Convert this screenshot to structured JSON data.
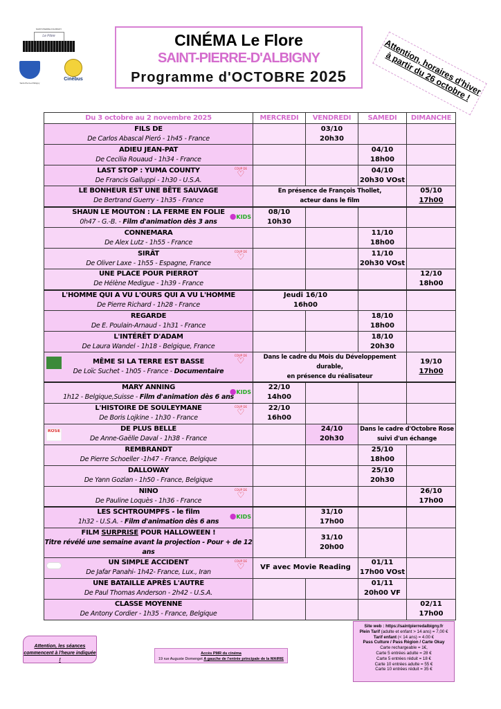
{
  "logos": {
    "flore_top": "SAINT-PIERRE-D'ALBIGNY",
    "flore_sub": "CINÉMA",
    "flore_name": "Le Flore",
    "coat_caption": "Saint-Pierre-d'Albigny",
    "cinebus": "Cinébus"
  },
  "header": {
    "line1": "CINÉMA Le Flore",
    "line2": "SAINT-PIERRE-D'ALBIGNY",
    "line3": "Programme d'OCTOBRE",
    "year": "2025"
  },
  "ribbon": {
    "line1": "Attention, horaires d'hiver",
    "line2": "à partir du 26 octobre !"
  },
  "colors": {
    "accent": "#d46ccd",
    "row_dark": "#f6cbf5",
    "row_light": "#fbe2fa"
  },
  "table": {
    "headers": [
      "Du 3 octobre au 2 novembre 2025",
      "MERCREDI",
      "VENDREDI",
      "SAMEDI",
      "DIMANCHE"
    ],
    "films": [
      {
        "title": "FILS DE",
        "sub": "De Carlos Abascal Pieró - 1h45 - France",
        "week": 1,
        "cells": [
          {
            "span": 1
          },
          {
            "span": 1,
            "l1": "03/10",
            "l2": "20h30"
          },
          {
            "span": 1
          },
          {
            "span": 1
          }
        ]
      },
      {
        "title": "ADIEU JEAN-PAT",
        "sub": "De Cecilia Rouaud - 1h34 - France",
        "week": 1,
        "cells": [
          {
            "span": 1
          },
          {
            "span": 1
          },
          {
            "span": 1,
            "l1": "04/10",
            "l2": "18h00"
          },
          {
            "span": 1
          }
        ]
      },
      {
        "title": "LAST STOP : YUMA COUNTY",
        "sub": "De Francis Galluppi - 1h30 - U.S.A.",
        "icon": "coup-de-coeur-heart",
        "week": 1,
        "cells": [
          {
            "span": 1
          },
          {
            "span": 1
          },
          {
            "span": 1,
            "l1": "04/10",
            "l2": "20h30 VOst"
          },
          {
            "span": 1
          }
        ]
      },
      {
        "title": "LE BONHEUR EST UNE BÊTE SAUVAGE",
        "sub": "De Bertrand Guerry - 1h35 - France",
        "week": 1,
        "cells": [
          {
            "span": 3,
            "note": true,
            "l1": "En présence de François Thollet,",
            "l2": "acteur dans le film"
          },
          {
            "span": 1,
            "l1": "05/10",
            "l2": "17h00",
            "u2": true
          }
        ]
      },
      {
        "title": "SHAUN LE MOUTON : LA FERME EN FOLIE",
        "sub": "0h47 - G.-B. - ",
        "sub_bold": "Film d'animation dès 3 ans",
        "icon": "kids",
        "week": 2,
        "cells": [
          {
            "span": 1,
            "l1": "08/10",
            "l2": "10h30"
          },
          {
            "span": 1
          },
          {
            "span": 1
          },
          {
            "span": 1
          }
        ]
      },
      {
        "title": "CONNEMARA",
        "sub": "De Alex Lutz - 1h55 - France",
        "week": 2,
        "cells": [
          {
            "span": 1
          },
          {
            "span": 1
          },
          {
            "span": 1,
            "l1": "11/10",
            "l2": "18h00"
          },
          {
            "span": 1
          }
        ]
      },
      {
        "title": "SIRÂT",
        "sub": "De Oliver Laxe - 1h55 - Espagne, France",
        "icon": "coup-de-coeur-heart",
        "week": 2,
        "cells": [
          {
            "span": 1
          },
          {
            "span": 1
          },
          {
            "span": 1,
            "l1": "11/10",
            "l2": "20h30 VOst"
          },
          {
            "span": 1
          }
        ]
      },
      {
        "title": "UNE PLACE POUR PIERROT",
        "sub": "De Hélène Medigue  - 1h39 - France",
        "week": 2,
        "cells": [
          {
            "span": 1
          },
          {
            "span": 1
          },
          {
            "span": 1
          },
          {
            "span": 1,
            "l1": "12/10",
            "l2": "18h00"
          }
        ]
      },
      {
        "title": "L'HOMME QUI A VU L'OURS QUI A VU L'HOMME",
        "sub": "De Pierre Richard - 1h28 - France",
        "week": 3,
        "cells": [
          {
            "span": 2,
            "l1": "Jeudi 16/10",
            "l2": "16h00"
          },
          {
            "span": 1
          },
          {
            "span": 1
          }
        ]
      },
      {
        "title": "REGARDE",
        "sub": "De E. Poulain-Arnaud - 1h31 - France",
        "week": 3,
        "cells": [
          {
            "span": 1
          },
          {
            "span": 1
          },
          {
            "span": 1,
            "l1": "18/10",
            "l2": "18h00"
          },
          {
            "span": 1
          }
        ]
      },
      {
        "title": "L'INTÉRÊT D'ADAM",
        "sub": "De Laura Wandel - 1h18 - Belgique, France",
        "week": 3,
        "cells": [
          {
            "span": 1
          },
          {
            "span": 1
          },
          {
            "span": 1,
            "l1": "18/10",
            "l2": "20h30"
          },
          {
            "span": 1
          }
        ]
      },
      {
        "title": "MÊME SI LA TERRE EST BASSE",
        "sub": "De Loïc Suchet - 1h05 - France - ",
        "sub_bold": "Documentaire",
        "icon": "coup-de-coeur-heart",
        "left_icon": "mois-developpement-durable",
        "week": 3,
        "cells": [
          {
            "span": 3,
            "note": true,
            "l1": "Dans le cadre du Mois du Développement durable,",
            "l2": "en présence du réalisateur"
          },
          {
            "span": 1,
            "l1": "19/10",
            "l2": "17h00",
            "u2": true
          }
        ]
      },
      {
        "title": "MARY ANNING",
        "sub": "1h12 - Belgique,Suisse - ",
        "sub_bold": "Film d'animation dès 6 ans",
        "icon": "kids",
        "week": 4,
        "cells": [
          {
            "span": 1,
            "l1": "22/10",
            "l2": "14h00"
          },
          {
            "span": 1
          },
          {
            "span": 1
          },
          {
            "span": 1
          }
        ]
      },
      {
        "title": "L'HISTOIRE DE SOULEYMANE",
        "sub": "De Boris Lojkine - 1h30 - France",
        "icon": "coup-de-coeur-heart",
        "week": 4,
        "cells": [
          {
            "span": 1,
            "l1": "22/10",
            "l2": "16h00"
          },
          {
            "span": 1
          },
          {
            "span": 1
          },
          {
            "span": 1
          }
        ]
      },
      {
        "title": "DE PLUS BELLE",
        "sub": "De Anne-Gaëlle Daval - 1h38 - France",
        "left_icon": "octobre-rose",
        "week": 4,
        "cells": [
          {
            "span": 1
          },
          {
            "span": 1,
            "l1": "24/10",
            "l2": "20h30"
          },
          {
            "span": 2,
            "note": true,
            "l1": "Dans le cadre d'Octobre Rose",
            "l2": "suivi d'un échange"
          }
        ]
      },
      {
        "title": "REMBRANDT",
        "sub": "De Pierre Schoeller -1h47 - France, Belgique",
        "week": 4,
        "cells": [
          {
            "span": 1
          },
          {
            "span": 1
          },
          {
            "span": 1,
            "l1": "25/10",
            "l2": "18h00"
          },
          {
            "span": 1
          }
        ]
      },
      {
        "title": "DALLOWAY",
        "sub": "De Yann Gozlan - 1h50 - France, Belgique",
        "week": 4,
        "cells": [
          {
            "span": 1
          },
          {
            "span": 1
          },
          {
            "span": 1,
            "l1": "25/10",
            "l2": "20h30"
          },
          {
            "span": 1
          }
        ]
      },
      {
        "title": "NINO",
        "sub": "De Pauline Loquès - 1h36 - France",
        "icon": "coup-de-coeur-heart",
        "week": 4,
        "cells": [
          {
            "span": 1
          },
          {
            "span": 1
          },
          {
            "span": 1
          },
          {
            "span": 1,
            "l1": "26/10",
            "l2": "17h00"
          }
        ]
      },
      {
        "title": "LES SCHTROUMPFS - le film",
        "sub": "1h32 - U.S.A. - ",
        "sub_bold": "Film d'animation dès 6 ans",
        "icon": "kids",
        "week": 5,
        "cells": [
          {
            "span": 1
          },
          {
            "span": 1,
            "l1": "31/10",
            "l2": "17h00"
          },
          {
            "span": 1
          },
          {
            "span": 1
          }
        ]
      },
      {
        "title": "FILM SURPRISE POUR HALLOWEEN !",
        "sub": "",
        "sub_bold": "Titre révélé une semaine avant la projection - Pour + de 12 ans",
        "week": 5,
        "cells": [
          {
            "span": 1
          },
          {
            "span": 1,
            "l1": "31/10",
            "l2": "20h00"
          },
          {
            "span": 1
          },
          {
            "span": 1
          }
        ]
      },
      {
        "title": "UN SIMPLE ACCIDENT",
        "sub": "De Jafar Panahi- 1h42- France, Lux., Iran",
        "icon": "coup-de-coeur-heart",
        "left_icon": "palme-cannes",
        "week": 5,
        "cells": [
          {
            "span": 2,
            "big_note": true,
            "l1": "VF avec Movie Reading"
          },
          {
            "span": 1,
            "l1": "01/11",
            "l2": "17h00 VOst"
          },
          {
            "span": 1
          }
        ]
      },
      {
        "title": "UNE BATAILLE APRÈS L'AUTRE",
        "sub": "De Paul Thomas Anderson - 2h42 - U.S.A.",
        "week": 5,
        "cells": [
          {
            "span": 1
          },
          {
            "span": 1
          },
          {
            "span": 1,
            "l1": "01/11",
            "l2": "20h00 VF"
          },
          {
            "span": 1
          }
        ]
      },
      {
        "title": "CLASSE MOYENNE",
        "sub": "De Antony Cordier - 1h35 - France, Belgique",
        "week": 5,
        "cells": [
          {
            "span": 1
          },
          {
            "span": 1
          },
          {
            "span": 1
          },
          {
            "span": 1,
            "l1": "02/11",
            "l2": "17h00"
          }
        ]
      }
    ]
  },
  "footer": {
    "warning": "Attention, les séances commencent à l'heure indiquée !",
    "pmr_title": "Accès PMR du cinéma",
    "pmr_address": "19 rue Auguste Domenget",
    "pmr_direction": "A gauche de l'entrée principale de la MAIRIE",
    "tarifs": {
      "site": "Site web : https://saintpierredalbigny.fr",
      "plein_label": "Plein Tarif",
      "plein_text": " (adulte et enfant > 14 ans)  = 7,00 €",
      "enfant_label": "Tarif enfant",
      "enfant_text": " (< 14 ans) = 4.00 €",
      "pass": "Pass Culture / Pass Région / Carte Okay",
      "lines": [
        "Carte rechargeable = 1€,",
        "Carte 5 entrées adulte = 28 €",
        "Carte 5 entrées réduit = 18 €",
        "Carte 10 entrées adulte = 55 €",
        "Carte 10 entrées réduit = 35 €"
      ]
    }
  }
}
